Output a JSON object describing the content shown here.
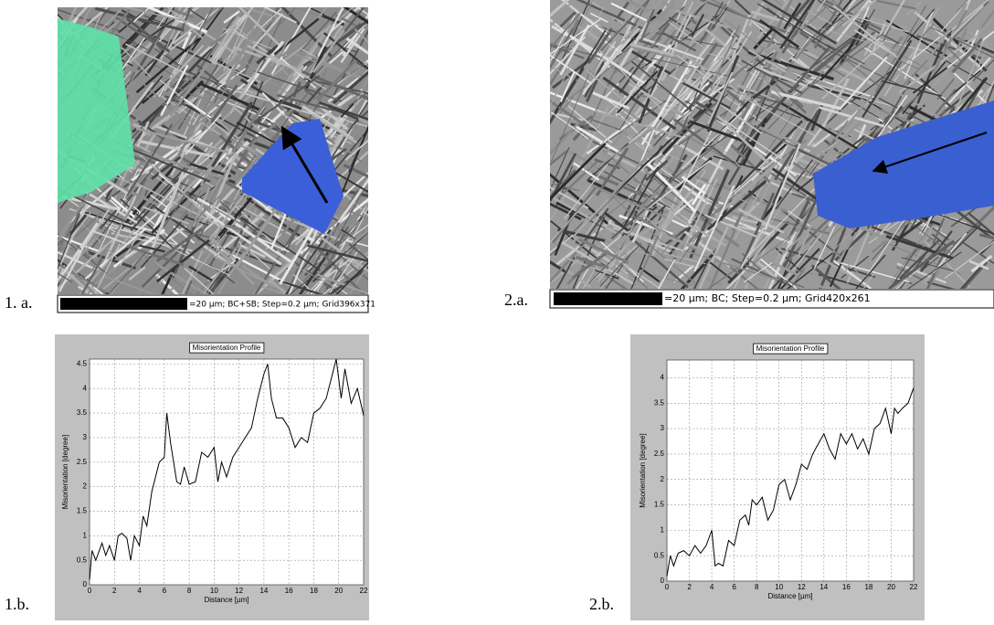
{
  "panels": [
    {
      "label": "1. a.",
      "caption": "=20 µm; BC+SB; Step=0.2 µm; Grid396x371"
    },
    {
      "label": "2.a.",
      "caption": "=20 µm; BC; Step=0.2 µm; Grid420x261"
    }
  ],
  "chart_data": [
    {
      "type": "line",
      "label": "1.b.",
      "title": "Misorientation Profile",
      "xlabel": "Distance [µm]",
      "ylabel": "Misorientation [degree]",
      "x": [
        0,
        0.2,
        0.5,
        1,
        1.3,
        1.6,
        2,
        2.3,
        2.6,
        3,
        3.3,
        3.6,
        4,
        4.3,
        4.6,
        5,
        5.3,
        5.6,
        6,
        6.2,
        6.5,
        7,
        7.3,
        7.6,
        8,
        8.5,
        9,
        9.5,
        10,
        10.3,
        10.6,
        11,
        11.5,
        12,
        12.5,
        13,
        13.5,
        14,
        14.3,
        14.6,
        15,
        15.5,
        16,
        16.5,
        17,
        17.5,
        18,
        18.5,
        19,
        19.5,
        19.8,
        20.2,
        20.5,
        21,
        21.5,
        22
      ],
      "series": [
        {
          "color": "#000000",
          "values": [
            0.1,
            0.7,
            0.5,
            0.85,
            0.6,
            0.8,
            0.5,
            1.0,
            1.05,
            0.95,
            0.5,
            1.0,
            0.8,
            1.4,
            1.2,
            1.9,
            2.2,
            2.5,
            2.6,
            3.5,
            2.9,
            2.1,
            2.05,
            2.4,
            2.05,
            2.1,
            2.7,
            2.6,
            2.8,
            2.1,
            2.5,
            2.2,
            2.6,
            2.8,
            3.0,
            3.2,
            3.8,
            4.3,
            4.5,
            3.8,
            3.4,
            3.4,
            3.2,
            2.8,
            3.0,
            2.9,
            3.5,
            3.6,
            3.8,
            4.3,
            4.6,
            3.8,
            4.4,
            3.7,
            4.0,
            3.45
          ]
        }
      ],
      "xlim": [
        0,
        22
      ],
      "ylim": [
        0,
        4.6
      ],
      "xticks": [
        0,
        2,
        4,
        6,
        8,
        10,
        12,
        14,
        16,
        18,
        20,
        22
      ],
      "yticks": [
        0,
        0.5,
        1,
        1.5,
        2,
        2.5,
        3,
        3.5,
        4,
        4.5
      ],
      "grid": true
    },
    {
      "type": "line",
      "label": "2.b.",
      "title": "Misorientation Profile",
      "xlabel": "Distance [µm]",
      "ylabel": "Misorientation [degree]",
      "x": [
        0,
        0.3,
        0.6,
        1,
        1.5,
        2,
        2.5,
        3,
        3.5,
        4,
        4.3,
        4.6,
        5,
        5.5,
        6,
        6.5,
        7,
        7.3,
        7.6,
        8,
        8.5,
        9,
        9.5,
        10,
        10.5,
        11,
        11.5,
        12,
        12.5,
        13,
        13.5,
        14,
        14.5,
        15,
        15.5,
        16,
        16.5,
        17,
        17.5,
        18,
        18.5,
        19,
        19.5,
        20,
        20.3,
        20.6,
        21,
        21.5,
        22
      ],
      "series": [
        {
          "color": "#000000",
          "values": [
            0.1,
            0.5,
            0.3,
            0.55,
            0.6,
            0.5,
            0.7,
            0.55,
            0.7,
            1.0,
            0.3,
            0.35,
            0.3,
            0.8,
            0.7,
            1.2,
            1.3,
            1.1,
            1.6,
            1.5,
            1.65,
            1.2,
            1.4,
            1.9,
            2.0,
            1.6,
            1.9,
            2.3,
            2.2,
            2.5,
            2.7,
            2.9,
            2.6,
            2.4,
            2.9,
            2.7,
            2.9,
            2.6,
            2.8,
            2.5,
            3.0,
            3.1,
            3.4,
            2.9,
            3.4,
            3.3,
            3.4,
            3.5,
            3.8
          ]
        }
      ],
      "xlim": [
        0,
        22
      ],
      "ylim": [
        0,
        4.35
      ],
      "xticks": [
        0,
        2,
        4,
        6,
        8,
        10,
        12,
        14,
        16,
        18,
        20,
        22
      ],
      "yticks": [
        0,
        0.5,
        1,
        1.5,
        2,
        2.5,
        3,
        3.5,
        4
      ],
      "grid": true
    }
  ]
}
